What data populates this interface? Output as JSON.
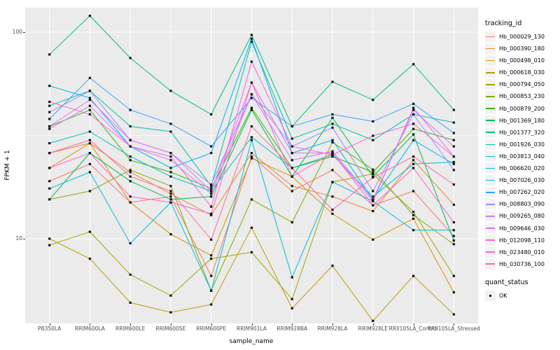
{
  "axes": {
    "x_title": "sample_name",
    "y_title": "FPKM + 1",
    "y_ticks": [
      "100",
      "10"
    ]
  },
  "legend": {
    "color_title": "tracking_id",
    "shape_title": "quant_status",
    "shape_item_label": "OK"
  },
  "style": {
    "panel_bg": "#EBEBEB",
    "grid_color": "#FFFFFF",
    "point_color": "#111111",
    "tick_text_color": "#4D4D4D"
  },
  "chart_data": {
    "type": "line",
    "x_type": "categorical",
    "y_scale": "log10",
    "ylim": [
      3.9,
      131
    ],
    "y_gridlines_major": [
      100,
      10
    ],
    "y_gridlines_minor": [
      31.6
    ],
    "grid": true,
    "legend_position": "right",
    "points": {
      "shape": "small black square",
      "meaning": "quant_status OK"
    },
    "title": "",
    "xlabel": "sample_name",
    "ylabel": "FPKM + 1",
    "categories": [
      "PB350LA",
      "RRIM600LA",
      "RRIM600LE",
      "RRIM600SE",
      "RRIM600PE",
      "RRIM901LA",
      "RRIM928BA",
      "RRIM928LA",
      "RRIM928LE",
      "RRII105LA_Control",
      "RRII105LA_Stressed"
    ],
    "series": [
      {
        "name": "Hb_000029_130",
        "color": "#F8766D",
        "values": [
          19,
          23,
          15,
          16,
          6.6,
          25,
          17,
          21.5,
          14.5,
          17,
          10.3
        ]
      },
      {
        "name": "Hb_000390_180",
        "color": "#EA8331",
        "values": [
          26,
          29,
          21,
          16.5,
          13,
          26,
          18,
          16,
          13.6,
          24,
          14.6
        ]
      },
      {
        "name": "Hb_000498_010",
        "color": "#D89000",
        "values": [
          22,
          29,
          15,
          10.5,
          8.3,
          24.5,
          20,
          13.2,
          9.9,
          12.5,
          5.5
        ]
      },
      {
        "name": "Hb_000618_030",
        "color": "#C09B00",
        "values": [
          10,
          8,
          4.9,
          4.4,
          4.8,
          11.3,
          4.6,
          7.4,
          4.0,
          6.6,
          4.3
        ]
      },
      {
        "name": "Hb_000794_050",
        "color": "#A3A500",
        "values": [
          9.3,
          10.8,
          6.7,
          5.3,
          8.0,
          8.6,
          5.1,
          18.8,
          20.6,
          13.5,
          6.6
        ]
      },
      {
        "name": "Hb_000853_230",
        "color": "#7CAE00",
        "values": [
          15.5,
          17,
          21.5,
          18,
          5.6,
          15.5,
          12,
          29.3,
          21.6,
          13,
          9.4
        ]
      },
      {
        "name": "Hb_000879_200",
        "color": "#39B600",
        "values": [
          35,
          42,
          24,
          21,
          17.5,
          43,
          22,
          25,
          21,
          34,
          30
        ]
      },
      {
        "name": "Hb_001369_180",
        "color": "#00BB4E",
        "values": [
          15.5,
          26,
          19,
          15.5,
          16,
          42,
          20,
          38.5,
          20,
          32,
          9.8
        ]
      },
      {
        "name": "Hb_001377_320",
        "color": "#00BF7D",
        "values": [
          78,
          120,
          75,
          52,
          40,
          97,
          35,
          57.5,
          47,
          70,
          42
        ]
      },
      {
        "name": "Hb_001926_030",
        "color": "#00C1A3",
        "values": [
          44,
          52,
          35,
          33,
          18,
          90,
          30.5,
          36,
          30,
          40,
          36.5
        ]
      },
      {
        "name": "Hb_003813_040",
        "color": "#00BFC4",
        "values": [
          29,
          33,
          25,
          20,
          17,
          31,
          22,
          25.5,
          16,
          23,
          23.5
        ]
      },
      {
        "name": "Hb_006620_020",
        "color": "#00BAE0",
        "values": [
          17.5,
          21,
          9.5,
          15,
          5.6,
          30,
          6.5,
          18.8,
          15.2,
          11,
          11
        ]
      },
      {
        "name": "Hb_007026_030",
        "color": "#00B0F6",
        "values": [
          55,
          48,
          28,
          22,
          26,
          93,
          26,
          30,
          15.5,
          30,
          23
        ]
      },
      {
        "name": "Hb_007262_020",
        "color": "#35A2FF",
        "values": [
          38,
          60,
          42,
          36,
          28,
          48,
          35,
          40,
          37,
          45,
          32.5
        ]
      },
      {
        "name": "Hb_008803_090",
        "color": "#9590FF",
        "values": [
          41,
          52,
          30,
          26,
          18.3,
          50,
          28,
          34.5,
          17,
          40,
          21.5
        ]
      },
      {
        "name": "Hb_009265_080",
        "color": "#C77CFF",
        "values": [
          34,
          44,
          28,
          24,
          16.5,
          50,
          24,
          26.5,
          15.5,
          42,
          28
        ]
      },
      {
        "name": "Hb_009646_030",
        "color": "#E76BF3",
        "values": [
          35,
          47,
          30,
          26,
          17,
          57,
          26,
          26,
          15.2,
          43,
          25
        ]
      },
      {
        "name": "Hb_012098_110",
        "color": "#FA62DB",
        "values": [
          46,
          40,
          28,
          25,
          14.3,
          72,
          28,
          25.5,
          31.5,
          36,
          25
        ]
      },
      {
        "name": "Hb_023480_010",
        "color": "#FF61CC",
        "values": [
          22,
          26,
          16,
          15,
          13.2,
          57,
          20,
          26,
          14.5,
          22,
          12
        ]
      },
      {
        "name": "Hb_030736_100",
        "color": "#FF67A4",
        "values": [
          26,
          30,
          20,
          17,
          9.9,
          35,
          22,
          13.8,
          19.8,
          25,
          18.3
        ]
      }
    ]
  }
}
